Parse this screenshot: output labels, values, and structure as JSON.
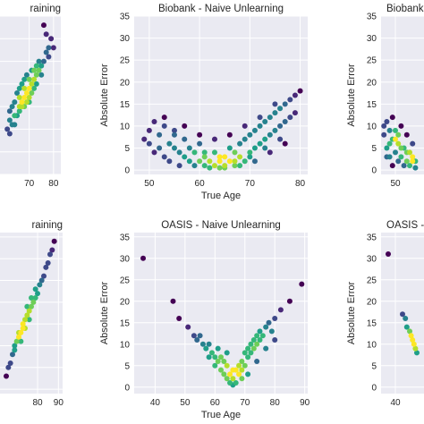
{
  "chart_data": [
    {
      "type": "scatter",
      "title": "raining",
      "xlabel": "",
      "ylabel": "",
      "xlim": [
        58,
        83
      ],
      "ylim": [
        0,
        35
      ],
      "xticks": [
        70,
        80
      ],
      "yticks": [],
      "points": [
        [
          62,
          12
        ],
        [
          64,
          13
        ],
        [
          66,
          15
        ],
        [
          67,
          16
        ],
        [
          68,
          17
        ],
        [
          69,
          18
        ],
        [
          70,
          19
        ],
        [
          71,
          20
        ],
        [
          72,
          21
        ],
        [
          73,
          22
        ],
        [
          74,
          23
        ],
        [
          75,
          24
        ],
        [
          76,
          25
        ],
        [
          77,
          27
        ],
        [
          78,
          28
        ],
        [
          79,
          30
        ],
        [
          76,
          33
        ],
        [
          77,
          31
        ],
        [
          62,
          14
        ],
        [
          63,
          11
        ],
        [
          65,
          13
        ],
        [
          66,
          17
        ],
        [
          67,
          15
        ],
        [
          68,
          19
        ],
        [
          69,
          16
        ],
        [
          70,
          21
        ],
        [
          71,
          18
        ],
        [
          72,
          23
        ],
        [
          73,
          20
        ],
        [
          74,
          25
        ],
        [
          75,
          22
        ],
        [
          64,
          16
        ],
        [
          65,
          18
        ],
        [
          66,
          19
        ],
        [
          67,
          20
        ],
        [
          68,
          21
        ],
        [
          69,
          22
        ],
        [
          70,
          17
        ],
        [
          71,
          23
        ],
        [
          72,
          19
        ],
        [
          73,
          24
        ],
        [
          61,
          10
        ],
        [
          63,
          15
        ],
        [
          78,
          26
        ],
        [
          80,
          28
        ],
        [
          62,
          9
        ],
        [
          64,
          11
        ],
        [
          66,
          14
        ],
        [
          68,
          15
        ],
        [
          70,
          16
        ]
      ]
    },
    {
      "type": "scatter",
      "title": "Biobank - Naive Unlearning",
      "xlabel": "True Age",
      "ylabel": "Absolute Error",
      "xlim": [
        47,
        81.5
      ],
      "ylim": [
        -1,
        35
      ],
      "xticks": [
        50,
        60,
        70,
        80
      ],
      "yticks": [
        0,
        5,
        10,
        15,
        20,
        25,
        30,
        35
      ],
      "points": [
        [
          49,
          7
        ],
        [
          50,
          6
        ],
        [
          50,
          9
        ],
        [
          51,
          4
        ],
        [
          51,
          11
        ],
        [
          52,
          5
        ],
        [
          52,
          8
        ],
        [
          53,
          3
        ],
        [
          53,
          10
        ],
        [
          54,
          6
        ],
        [
          54,
          2
        ],
        [
          55,
          5
        ],
        [
          55,
          9
        ],
        [
          56,
          4
        ],
        [
          56,
          1
        ],
        [
          57,
          3
        ],
        [
          57,
          7
        ],
        [
          58,
          2
        ],
        [
          58,
          5
        ],
        [
          59,
          1
        ],
        [
          59,
          4
        ],
        [
          60,
          2
        ],
        [
          60,
          6
        ],
        [
          61,
          1
        ],
        [
          61,
          3
        ],
        [
          62,
          2
        ],
        [
          62,
          0.5
        ],
        [
          63,
          1
        ],
        [
          63,
          4
        ],
        [
          64,
          2
        ],
        [
          64,
          0.5
        ],
        [
          65,
          1
        ],
        [
          65,
          3
        ],
        [
          66,
          2
        ],
        [
          66,
          5
        ],
        [
          67,
          1
        ],
        [
          67,
          4
        ],
        [
          68,
          3
        ],
        [
          68,
          6
        ],
        [
          69,
          2
        ],
        [
          69,
          7
        ],
        [
          70,
          4
        ],
        [
          70,
          8
        ],
        [
          71,
          5
        ],
        [
          71,
          9
        ],
        [
          72,
          6
        ],
        [
          72,
          10
        ],
        [
          73,
          7
        ],
        [
          73,
          11
        ],
        [
          74,
          8
        ],
        [
          74,
          12
        ],
        [
          75,
          9
        ],
        [
          75,
          13
        ],
        [
          76,
          10
        ],
        [
          76,
          14
        ],
        [
          77,
          11
        ],
        [
          77,
          15
        ],
        [
          78,
          12
        ],
        [
          78,
          16
        ],
        [
          79,
          17
        ],
        [
          79,
          13
        ],
        [
          80,
          18
        ],
        [
          53,
          12
        ],
        [
          55,
          8
        ],
        [
          57,
          10
        ],
        [
          60,
          8
        ],
        [
          63,
          7
        ],
        [
          66,
          8
        ],
        [
          69,
          10
        ],
        [
          72,
          12
        ],
        [
          75,
          15
        ],
        [
          61,
          4
        ],
        [
          64,
          3
        ],
        [
          67,
          2
        ],
        [
          70,
          3
        ],
        [
          73,
          5
        ],
        [
          76,
          7
        ],
        [
          65,
          0.5
        ],
        [
          68,
          1
        ],
        [
          71,
          2
        ],
        [
          74,
          4
        ],
        [
          77,
          6
        ]
      ]
    },
    {
      "type": "scatter",
      "title": "Biobank",
      "xlabel": "",
      "ylabel": "Absolute Error",
      "xlim": [
        45,
        60
      ],
      "ylim": [
        -1,
        35
      ],
      "xticks": [
        50
      ],
      "yticks": [
        0,
        5,
        10,
        15,
        20,
        25,
        30,
        35
      ],
      "points": [
        [
          46,
          8
        ],
        [
          47,
          11
        ],
        [
          47,
          5
        ],
        [
          48,
          9
        ],
        [
          48,
          3
        ],
        [
          49,
          7
        ],
        [
          49,
          12
        ],
        [
          50,
          4
        ],
        [
          50,
          9
        ],
        [
          51,
          2
        ],
        [
          51,
          6
        ],
        [
          52,
          3
        ],
        [
          52,
          10
        ],
        [
          53,
          1
        ],
        [
          53,
          5
        ],
        [
          54,
          2
        ],
        [
          54,
          8
        ],
        [
          55,
          4
        ],
        [
          55,
          1
        ],
        [
          56,
          3
        ],
        [
          56,
          6
        ],
        [
          57,
          2
        ],
        [
          57,
          0.5
        ],
        [
          46,
          10
        ],
        [
          48,
          6
        ],
        [
          50,
          7
        ],
        [
          52,
          5
        ],
        [
          54,
          4
        ],
        [
          56,
          2
        ],
        [
          47,
          3
        ],
        [
          49,
          1
        ],
        [
          51,
          8
        ]
      ]
    },
    {
      "type": "scatter",
      "title": "raining",
      "xlabel": "",
      "ylabel": "",
      "xlim": [
        62,
        92
      ],
      "ylim": [
        -1,
        36
      ],
      "xticks": [
        80,
        90
      ],
      "yticks": [],
      "points": [
        [
          65,
          3
        ],
        [
          66,
          5
        ],
        [
          67,
          6
        ],
        [
          68,
          8
        ],
        [
          69,
          9
        ],
        [
          70,
          11
        ],
        [
          71,
          12
        ],
        [
          72,
          13
        ],
        [
          73,
          14
        ],
        [
          74,
          16
        ],
        [
          75,
          17
        ],
        [
          76,
          18
        ],
        [
          77,
          19
        ],
        [
          78,
          20
        ],
        [
          79,
          21
        ],
        [
          80,
          22
        ],
        [
          81,
          24
        ],
        [
          82,
          25
        ],
        [
          83,
          26
        ],
        [
          84,
          28
        ],
        [
          85,
          29
        ],
        [
          86,
          31
        ],
        [
          87,
          32
        ],
        [
          88,
          34
        ],
        [
          69,
          10
        ],
        [
          71,
          13
        ],
        [
          73,
          15
        ],
        [
          75,
          19
        ],
        [
          77,
          21
        ],
        [
          79,
          23
        ],
        [
          72,
          11
        ],
        [
          74,
          14
        ],
        [
          76,
          16
        ]
      ]
    },
    {
      "type": "scatter",
      "title": "OASIS - Naive Unlearning",
      "xlabel": "True Age",
      "ylabel": "Absolute Error",
      "xlim": [
        33,
        91
      ],
      "ylim": [
        -1.5,
        36
      ],
      "xticks": [
        40,
        50,
        60,
        70,
        80,
        90
      ],
      "yticks": [
        0,
        5,
        10,
        15,
        20,
        25,
        30,
        35
      ],
      "points": [
        [
          36,
          30
        ],
        [
          46,
          20
        ],
        [
          48,
          16
        ],
        [
          51,
          14
        ],
        [
          53,
          12
        ],
        [
          54,
          11
        ],
        [
          55,
          12
        ],
        [
          56,
          10
        ],
        [
          57,
          9
        ],
        [
          58,
          10
        ],
        [
          58,
          7
        ],
        [
          59,
          8
        ],
        [
          60,
          7
        ],
        [
          60,
          5
        ],
        [
          61,
          6
        ],
        [
          62,
          4
        ],
        [
          62,
          7
        ],
        [
          63,
          3
        ],
        [
          64,
          5
        ],
        [
          64,
          2
        ],
        [
          65,
          1
        ],
        [
          65,
          3
        ],
        [
          66,
          0.5
        ],
        [
          66,
          2
        ],
        [
          67,
          1
        ],
        [
          67,
          4
        ],
        [
          68,
          3
        ],
        [
          68,
          5
        ],
        [
          69,
          4
        ],
        [
          69,
          6
        ],
        [
          70,
          5
        ],
        [
          70,
          8
        ],
        [
          71,
          7
        ],
        [
          71,
          9
        ],
        [
          72,
          8
        ],
        [
          72,
          10
        ],
        [
          73,
          9
        ],
        [
          73,
          11
        ],
        [
          74,
          10
        ],
        [
          74,
          12
        ],
        [
          75,
          11
        ],
        [
          75,
          13
        ],
        [
          76,
          12
        ],
        [
          77,
          14
        ],
        [
          78,
          15
        ],
        [
          79,
          13
        ],
        [
          80,
          16
        ],
        [
          82,
          18
        ],
        [
          85,
          20
        ],
        [
          89,
          24
        ],
        [
          63,
          6
        ],
        [
          66,
          4
        ],
        [
          69,
          2
        ],
        [
          71,
          3
        ],
        [
          74,
          6
        ],
        [
          77,
          9
        ],
        [
          80,
          11
        ],
        [
          61,
          9
        ],
        [
          64,
          8
        ]
      ]
    },
    {
      "type": "scatter",
      "title": "OASIS -",
      "xlabel": "",
      "ylabel": "Absolute Error",
      "xlim": [
        30,
        60
      ],
      "ylim": [
        -1.5,
        36
      ],
      "xticks": [
        40
      ],
      "yticks": [
        0,
        5,
        10,
        15,
        20,
        25,
        30,
        35
      ],
      "points": [
        [
          35,
          31
        ],
        [
          45,
          17
        ],
        [
          47,
          16
        ],
        [
          48,
          14
        ],
        [
          50,
          13
        ],
        [
          51,
          12
        ],
        [
          52,
          11
        ],
        [
          53,
          10
        ],
        [
          54,
          9
        ],
        [
          55,
          8
        ]
      ]
    }
  ]
}
